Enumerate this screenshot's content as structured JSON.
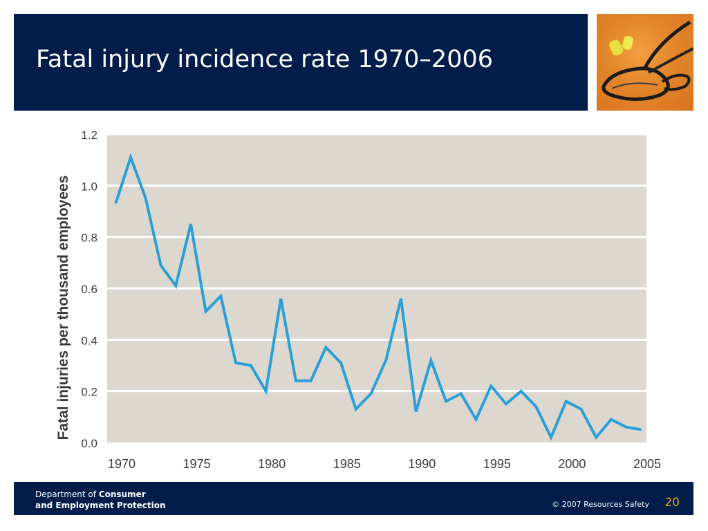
{
  "slide": {
    "title": "Fatal injury incidence rate 1970–2006",
    "page_number": "20"
  },
  "footer": {
    "dept_prefix": "Department of ",
    "dept_bold_1": "Consumer",
    "dept_line2": "and Employment Protection",
    "copyright": "© 2007 Resources Safety"
  },
  "colors": {
    "title_bar": "#021d4a",
    "plot_background": "#dcd8d0",
    "line": "#2a9ed6",
    "page_number": "#f5a21c"
  },
  "photo": {
    "icon": "safety-glasses-and-earplugs-photo"
  },
  "chart_data": {
    "type": "line",
    "ylabel": "Fatal injuries per thousand employees",
    "xlabel": "",
    "ylim": [
      0,
      1.2
    ],
    "xlim": [
      1970,
      2005
    ],
    "y_ticks": [
      "0.0",
      "0.2",
      "0.4",
      "0.6",
      "0.8",
      "1.0",
      "1.2"
    ],
    "x_ticks": [
      "1970",
      "1975",
      "1980",
      "1985",
      "1990",
      "1995",
      "2000",
      "2005"
    ],
    "grid": "horizontal",
    "series": [
      {
        "x": [
          1969.6,
          1970.6,
          1971.6,
          1972.6,
          1973.6,
          1974.6,
          1975.6,
          1976.6,
          1977.6,
          1978.6,
          1979.6,
          1980.6,
          1981.6,
          1982.6,
          1983.6,
          1984.6,
          1985.6,
          1986.6,
          1987.6,
          1988.6,
          1989.6,
          1990.6,
          1991.6,
          1992.6,
          1993.6,
          1994.6,
          1995.6,
          1996.6,
          1997.6,
          1998.6,
          1999.6,
          2000.6,
          2001.6,
          2002.6,
          2003.6,
          2004.6
        ],
        "values": [
          0.93,
          1.11,
          0.95,
          0.69,
          0.61,
          0.85,
          0.51,
          0.57,
          0.31,
          0.3,
          0.2,
          0.56,
          0.24,
          0.24,
          0.37,
          0.31,
          0.13,
          0.19,
          0.32,
          0.56,
          0.12,
          0.32,
          0.16,
          0.19,
          0.09,
          0.22,
          0.15,
          0.2,
          0.14,
          0.02,
          0.16,
          0.13,
          0.02,
          0.09,
          0.06,
          0.05
        ]
      }
    ]
  }
}
